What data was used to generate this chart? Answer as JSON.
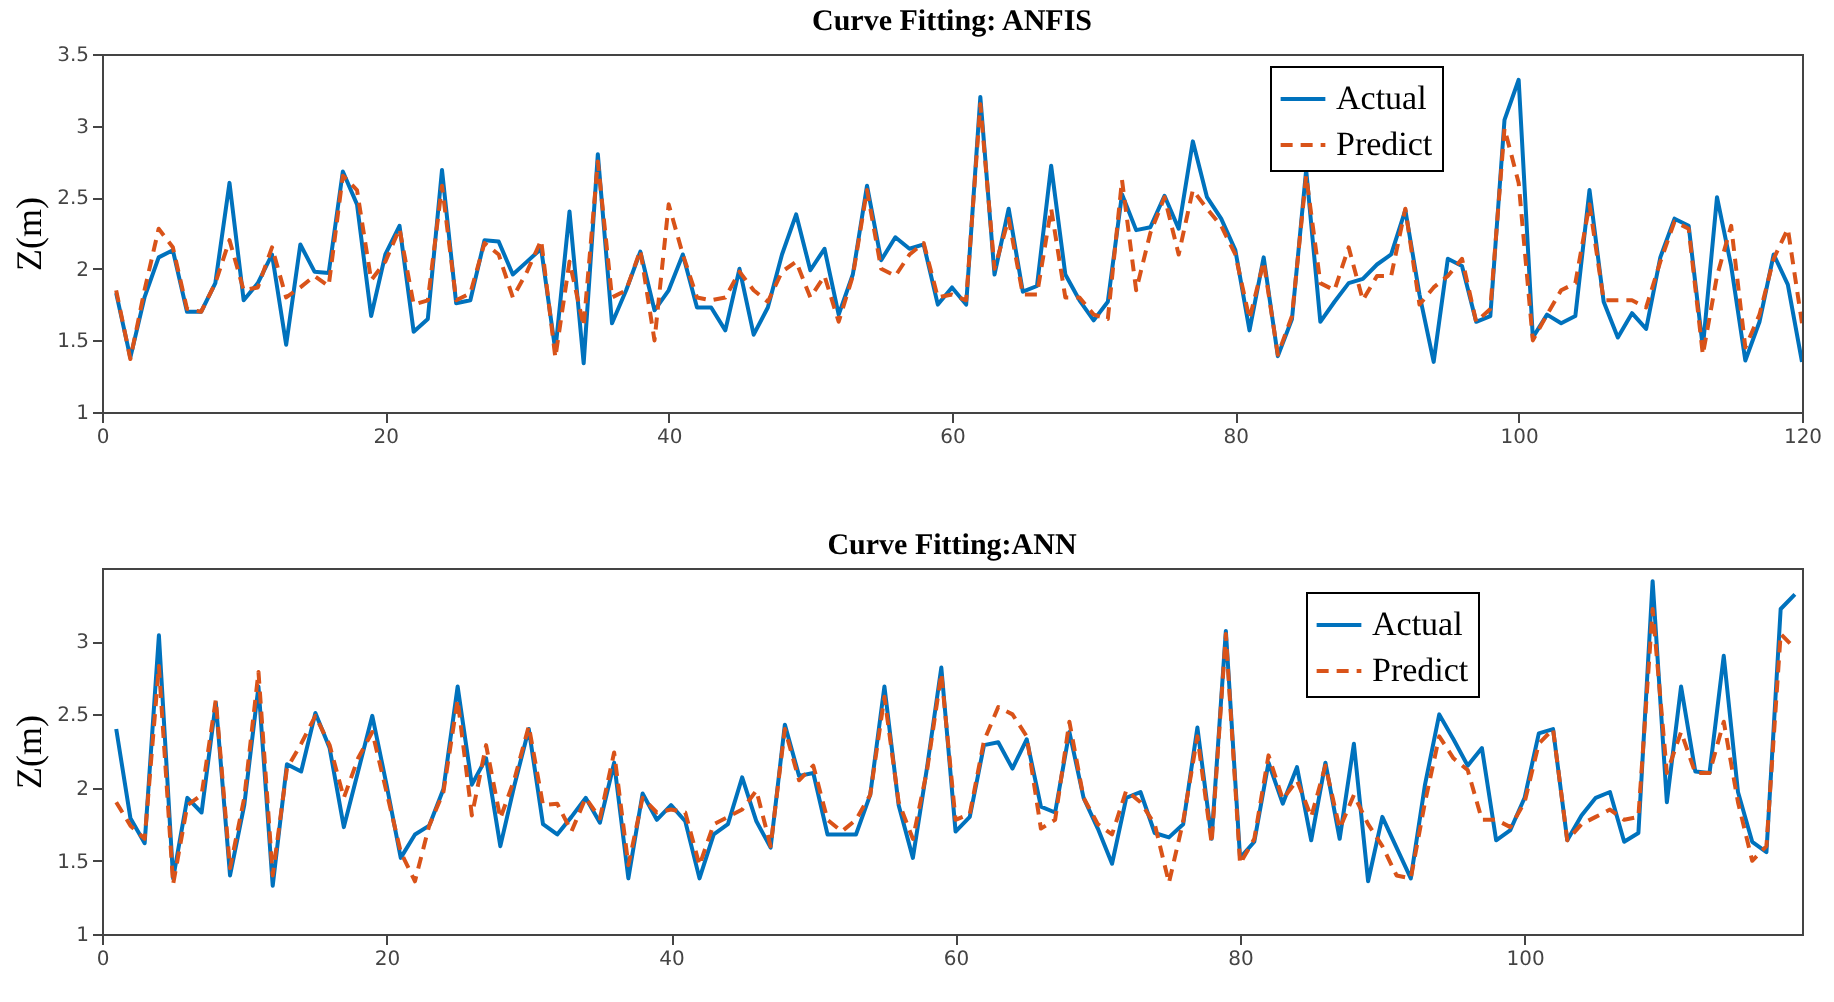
{
  "chart_data": [
    {
      "type": "line",
      "title": "Curve Fitting: ANFIS",
      "ylabel": "Z(m)",
      "xlim": [
        0,
        120
      ],
      "ylim": [
        1,
        3.5
      ],
      "xticks": [
        0,
        20,
        40,
        60,
        80,
        100,
        120
      ],
      "yticks": [
        1,
        1.5,
        2,
        2.5,
        3,
        3.5
      ],
      "legend": "top right",
      "grid": false,
      "x": [
        1,
        2,
        3,
        4,
        5,
        6,
        7,
        8,
        9,
        10,
        11,
        12,
        13,
        14,
        15,
        16,
        17,
        18,
        19,
        20,
        21,
        22,
        23,
        24,
        25,
        26,
        27,
        28,
        29,
        30,
        31,
        32,
        33,
        34,
        35,
        36,
        37,
        38,
        39,
        40,
        41,
        42,
        43,
        44,
        45,
        46,
        47,
        48,
        49,
        50,
        51,
        52,
        53,
        54,
        55,
        56,
        57,
        58,
        59,
        60,
        61,
        62,
        63,
        64,
        65,
        66,
        67,
        68,
        69,
        70,
        71,
        72,
        73,
        74,
        75,
        76,
        77,
        78,
        79,
        80,
        81,
        82,
        83,
        84,
        85,
        86,
        87,
        88,
        89,
        90,
        91,
        92,
        93,
        94,
        95,
        96,
        97,
        98,
        99,
        100,
        101,
        102,
        103,
        104,
        105,
        106,
        107,
        108,
        109,
        110,
        111,
        112,
        113,
        114,
        115,
        116,
        117,
        118,
        119,
        120
      ],
      "series": [
        {
          "name": "Actual",
          "color": "#0072bd",
          "line_style": "solid",
          "values": [
            1.83,
            1.38,
            1.8,
            2.08,
            2.13,
            1.7,
            1.7,
            1.9,
            2.6,
            1.78,
            1.9,
            2.1,
            1.47,
            2.17,
            1.98,
            1.97,
            2.68,
            2.45,
            1.67,
            2.1,
            2.3,
            1.56,
            1.65,
            2.69,
            1.76,
            1.78,
            2.2,
            2.19,
            1.96,
            2.05,
            2.14,
            1.43,
            2.4,
            1.34,
            2.8,
            1.62,
            1.85,
            2.12,
            1.71,
            1.85,
            2.1,
            1.73,
            1.73,
            1.57,
            2.0,
            1.54,
            1.73,
            2.1,
            2.38,
            1.99,
            2.14,
            1.68,
            1.96,
            2.58,
            2.06,
            2.22,
            2.14,
            2.17,
            1.75,
            1.87,
            1.75,
            3.2,
            1.96,
            2.42,
            1.84,
            1.88,
            2.72,
            1.96,
            1.78,
            1.64,
            1.77,
            2.52,
            2.27,
            2.29,
            2.51,
            2.28,
            2.89,
            2.5,
            2.35,
            2.13,
            1.57,
            2.08,
            1.39,
            1.65,
            2.69,
            1.63,
            1.77,
            1.9,
            1.93,
            2.03,
            2.1,
            2.41,
            1.82,
            1.35,
            2.07,
            2.02,
            1.63,
            1.67,
            3.04,
            3.32,
            1.52,
            1.68,
            1.62,
            1.67,
            2.55,
            1.77,
            1.52,
            1.69,
            1.58,
            2.08,
            2.35,
            2.3,
            1.45,
            2.5,
            2.02,
            1.36,
            1.63,
            2.1,
            1.89,
            1.35
          ]
        },
        {
          "name": "Predict",
          "color": "#d95319",
          "line_style": "dashed",
          "values": [
            1.85,
            1.37,
            1.85,
            2.28,
            2.15,
            1.72,
            1.7,
            1.9,
            2.2,
            1.85,
            1.87,
            2.15,
            1.8,
            1.87,
            1.95,
            1.88,
            2.65,
            2.55,
            1.92,
            2.05,
            2.28,
            1.75,
            1.78,
            2.58,
            1.78,
            1.83,
            2.18,
            2.1,
            1.8,
            1.98,
            2.2,
            1.38,
            2.05,
            1.6,
            2.75,
            1.8,
            1.85,
            2.13,
            1.5,
            2.45,
            2.1,
            1.8,
            1.78,
            1.8,
            1.98,
            1.85,
            1.77,
            1.98,
            2.05,
            1.8,
            1.95,
            1.63,
            1.95,
            2.55,
            2.0,
            1.95,
            2.1,
            2.18,
            1.8,
            1.82,
            1.78,
            3.15,
            2.0,
            2.35,
            1.82,
            1.82,
            2.42,
            1.8,
            1.8,
            1.68,
            1.65,
            2.62,
            1.85,
            2.25,
            2.5,
            2.1,
            2.55,
            2.42,
            2.3,
            2.1,
            1.65,
            2.05,
            1.4,
            1.67,
            2.65,
            1.9,
            1.85,
            2.15,
            1.78,
            1.95,
            1.95,
            2.42,
            1.75,
            1.87,
            1.95,
            2.07,
            1.63,
            1.72,
            2.98,
            2.6,
            1.5,
            1.68,
            1.85,
            1.9,
            2.45,
            1.78,
            1.78,
            1.78,
            1.73,
            2.05,
            2.33,
            2.28,
            1.4,
            1.95,
            2.3,
            1.45,
            1.68,
            2.07,
            2.28,
            1.62
          ]
        }
      ]
    },
    {
      "type": "line",
      "title": "Curve Fitting:ANN",
      "ylabel": "Z(m)",
      "xlim": [
        0,
        119.5
      ],
      "ylim": [
        1,
        3.5
      ],
      "xticks": [
        0,
        20,
        40,
        60,
        80,
        100
      ],
      "yticks": [
        1,
        1.5,
        2,
        2.5,
        3
      ],
      "legend": "top right",
      "grid": false,
      "x": [
        1,
        2,
        3,
        4,
        5,
        6,
        7,
        8,
        9,
        10,
        11,
        12,
        13,
        14,
        15,
        16,
        17,
        18,
        19,
        20,
        21,
        22,
        23,
        24,
        25,
        26,
        27,
        28,
        29,
        30,
        31,
        32,
        33,
        34,
        35,
        36,
        37,
        38,
        39,
        40,
        41,
        42,
        43,
        44,
        45,
        46,
        47,
        48,
        49,
        50,
        51,
        52,
        53,
        54,
        55,
        56,
        57,
        58,
        59,
        60,
        61,
        62,
        63,
        64,
        65,
        66,
        67,
        68,
        69,
        70,
        71,
        72,
        73,
        74,
        75,
        76,
        77,
        78,
        79,
        80,
        81,
        82,
        83,
        84,
        85,
        86,
        87,
        88,
        89,
        90,
        91,
        92,
        93,
        94,
        95,
        96,
        97,
        98,
        99,
        100,
        101,
        102,
        103,
        104,
        105,
        106,
        107,
        108,
        109,
        110,
        111,
        112,
        113,
        114,
        115,
        116,
        117,
        118,
        119
      ],
      "series": [
        {
          "name": "Actual",
          "color": "#0072bd",
          "line_style": "solid",
          "values": [
            2.4,
            1.79,
            1.62,
            3.04,
            1.38,
            1.93,
            1.83,
            2.58,
            1.4,
            1.88,
            2.69,
            1.33,
            2.16,
            2.11,
            2.51,
            2.27,
            1.73,
            2.11,
            2.49,
            2.02,
            1.52,
            1.68,
            1.74,
            1.99,
            2.69,
            2.02,
            2.2,
            1.6,
            2.02,
            2.4,
            1.75,
            1.68,
            1.8,
            1.93,
            1.76,
            2.17,
            1.38,
            1.96,
            1.78,
            1.88,
            1.77,
            1.38,
            1.68,
            1.75,
            2.07,
            1.77,
            1.59,
            2.43,
            2.08,
            2.1,
            1.68,
            1.68,
            1.68,
            1.95,
            2.69,
            1.88,
            1.52,
            2.14,
            2.82,
            1.7,
            1.8,
            2.29,
            2.31,
            2.13,
            2.33,
            1.87,
            1.83,
            2.38,
            1.93,
            1.72,
            1.48,
            1.93,
            1.97,
            1.69,
            1.66,
            1.75,
            2.41,
            1.65,
            3.07,
            1.52,
            1.63,
            2.17,
            1.89,
            2.14,
            1.64,
            2.17,
            1.65,
            2.3,
            1.36,
            1.8,
            1.59,
            1.38,
            2.02,
            2.5,
            2.33,
            2.15,
            2.27,
            1.64,
            1.71,
            1.93,
            2.37,
            2.4,
            1.64,
            1.81,
            1.93,
            1.97,
            1.63,
            1.69,
            3.41,
            1.9,
            2.69,
            2.11,
            2.1,
            2.9,
            1.97,
            1.63,
            1.56,
            3.22,
            3.32
          ]
        },
        {
          "name": "Predict",
          "color": "#d95319",
          "line_style": "dashed",
          "values": [
            1.9,
            1.74,
            1.65,
            2.83,
            1.34,
            1.88,
            1.95,
            2.6,
            1.45,
            1.93,
            2.79,
            1.4,
            2.13,
            2.3,
            2.49,
            2.29,
            1.93,
            2.2,
            2.38,
            1.97,
            1.56,
            1.36,
            1.74,
            1.97,
            2.6,
            1.81,
            2.29,
            1.79,
            2.06,
            2.42,
            1.88,
            1.89,
            1.7,
            1.93,
            1.79,
            2.24,
            1.47,
            1.93,
            1.83,
            1.85,
            1.83,
            1.47,
            1.75,
            1.8,
            1.85,
            1.98,
            1.6,
            2.4,
            2.05,
            2.15,
            1.78,
            1.7,
            1.78,
            1.95,
            2.62,
            1.9,
            1.65,
            2.12,
            2.78,
            1.78,
            1.82,
            2.32,
            2.55,
            2.5,
            2.35,
            1.72,
            1.78,
            2.45,
            1.93,
            1.75,
            1.68,
            1.98,
            1.9,
            1.75,
            1.35,
            1.77,
            2.35,
            1.62,
            3.05,
            1.48,
            1.65,
            2.22,
            1.92,
            2.05,
            1.8,
            2.15,
            1.72,
            1.95,
            1.75,
            1.6,
            1.4,
            1.38,
            1.9,
            2.35,
            2.2,
            2.12,
            1.78,
            1.78,
            1.73,
            1.9,
            2.3,
            2.4,
            1.64,
            1.75,
            1.8,
            1.85,
            1.78,
            1.8,
            3.22,
            2.1,
            2.38,
            2.1,
            2.1,
            2.45,
            1.9,
            1.5,
            1.6,
            3.05,
            2.95
          ]
        }
      ]
    }
  ]
}
